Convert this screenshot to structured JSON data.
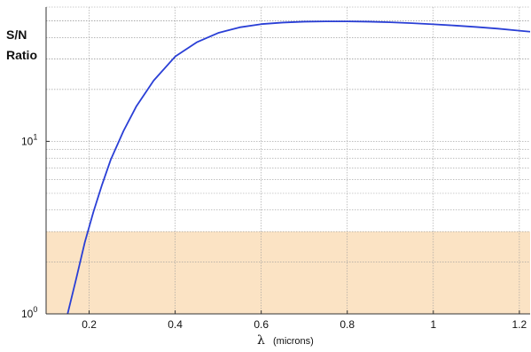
{
  "chart_data": {
    "type": "line",
    "ylabel_line1": "S/N",
    "ylabel_line2": "Ratio",
    "xlabel_symbol": "λ",
    "xlabel_units": "(microns)",
    "xlim": [
      0.1,
      1.225
    ],
    "ylim": [
      1,
      60
    ],
    "y_scale": "log",
    "grid": true,
    "x_ticks": [
      {
        "value": 0.2,
        "label": "0.2"
      },
      {
        "value": 0.4,
        "label": "0.4"
      },
      {
        "value": 0.6,
        "label": "0.6"
      },
      {
        "value": 0.8,
        "label": "0.8"
      },
      {
        "value": 1.0,
        "label": "1"
      },
      {
        "value": 1.2,
        "label": "1.2"
      }
    ],
    "y_ticks": [
      {
        "value": 1,
        "base": "10",
        "exp": "0"
      },
      {
        "value": 10,
        "base": "10",
        "exp": "1"
      }
    ],
    "shaded_region": {
      "y_from": 1,
      "y_to": 3,
      "color": "#fbe3c4"
    },
    "series": [
      {
        "color": "#2a3fd6",
        "x": [
          0.15,
          0.17,
          0.19,
          0.21,
          0.23,
          0.25,
          0.28,
          0.31,
          0.35,
          0.4,
          0.45,
          0.5,
          0.55,
          0.6,
          0.65,
          0.7,
          0.75,
          0.8,
          0.85,
          0.9,
          0.95,
          1.0,
          1.05,
          1.1,
          1.15,
          1.2,
          1.225
        ],
        "y": [
          1.0,
          1.6,
          2.6,
          3.9,
          5.6,
          7.8,
          11.5,
          16.0,
          22.5,
          31.0,
          37.5,
          42.5,
          45.8,
          47.8,
          48.8,
          49.4,
          49.6,
          49.6,
          49.4,
          49.0,
          48.4,
          47.7,
          46.9,
          46.0,
          45.0,
          43.8,
          43.2
        ]
      }
    ]
  }
}
